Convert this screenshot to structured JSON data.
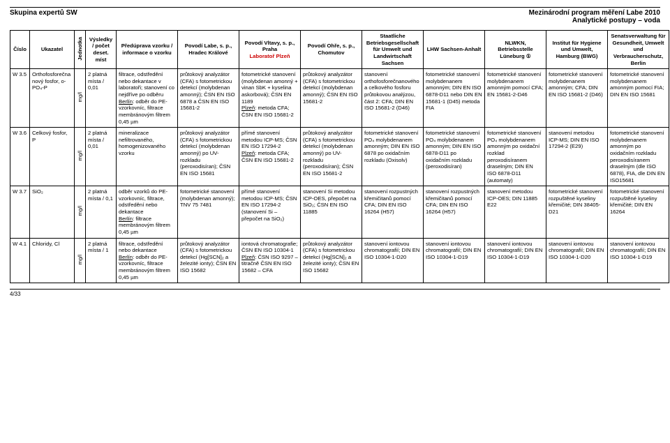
{
  "header": {
    "left": "Skupina expertů SW",
    "right_line1": "Mezinárodní program měření Labe 2010",
    "right_line2": "Analytické postupy – voda"
  },
  "columns": {
    "c0": "Číslo",
    "c1": "Ukazatel",
    "c2": "Jednotka",
    "c3": "Výsledky / počet deset. míst",
    "c4": "Předúprava vzorku / informace o vzorku",
    "c5": "Povodí Labe, s. p., Hradec Králové",
    "c6a": "Povodí Vltavy, s. p., Praha",
    "c6b": "Laboratoř Plzeň",
    "c7": "Povodí Ohře, s. p., Chomutov",
    "c8": "Staatliche Betriebsgesellschaft für Umwelt und Landwirtschaft  Sachsen",
    "c9": "LHW Sachsen-Anhalt",
    "c10": "NLWKN, Betriebsstelle Lüneburg ①",
    "c11": "Institut für Hygiene und Umwelt, Hamburg (BWG)",
    "c12": "Senatsverwaltung für Gesundheit, Umwelt und Verbraucherschutz, Berlin"
  },
  "rows": [
    {
      "num": "W 3.5",
      "param": "Orthofosforečnanový fosfor, o-PO₄-P",
      "unit": "mg/l",
      "results": "2 platná místa / 0,01",
      "c4": "filtrace, odstředění nebo dekantace v laboratoři; stanovení co nejdříve po odběru",
      "c4b": "Berlín: odběr do PE-vzorkovníc, filtrace membránovým filtrem 0,45 µm",
      "c5": "průtokový analyzátor (CFA) s fotometrickou detekcí (molybdenan amonný); ČSN EN ISO 6878 a ČSN EN ISO 15681-2",
      "c6": "fotometrické stanovení (molybdenan amonný + vinan SbK + kyselina askorbová); ČSN EN 1189",
      "c6b": "Plzeň: metoda CFA; ČSN EN ISO 15681-2",
      "c7": "průtokový analyzátor (CFA) s fotometrickou detekcí (molybdenan amonný); ČSN EN ISO 15681-2",
      "c8": "stanovení orthofosforečnanového a celkového fosforu průtokovou analýzou, část 2: CFA; DIN EN ISO 15681-2 (D46)",
      "c9": "fotometrické stanovení molybdenanem amonným; DIN EN ISO 6878-D11 nebo DIN EN 15681-1 (D45) metoda FIA",
      "c10": "fotometrické stanovení molybdenanem amonným pomocí CFA; EN 15681-2-D46",
      "c11": "fotometrické stanovení molybdenanem amonným; CFA; DIN EN ISO 15681-2 (D46)",
      "c12": "fotometrické stanovení molybdenanem amonným pomocí FIA; DIN EN ISO 15681"
    },
    {
      "num": "W 3.6",
      "param": "Celkový fosfor, P",
      "unit": "mg/l",
      "results": "2 platná místa / 0,01",
      "c4": "mineralizace nefiltrovaného, homogenizovaného vzorku",
      "c5": "průtokový analyzátor (CFA) s fotometrickou detekcí (molybdenan amonný) po UV-rozkladu (peroxodisíran); ČSN EN ISO 15681",
      "c6": "přímé stanovení metodou ICP-MS; ČSN EN ISO 17294-2",
      "c6b": "Plzeň: metoda CFA; ČSN EN ISO 15681-2",
      "c7": "průtokový analyzátor (CFA) s fotometrickou detekcí (molybdenan amonný) po UV-rozkladu (peroxodisíran); ČSN EN ISO 15681-2",
      "c8": "fotometrické stanovení PO₄ molybdenanem amonným; DIN EN ISO 6878 po oxidačním rozkladu (Oxisolv)",
      "c9": "fotometrické stanovení PO₄ molybdenanem amonným; DIN EN ISO 6878-D11 po oxidačním rozkladu (peroxodisíran)",
      "c10": "fotometrické stanovení PO₄ molybdenanem amonným po oxidační rozklad peroxodisíranem draselným; DIN EN ISO 6878-D11 (automaty)",
      "c11": "stanovení metodou ICP-MS; DIN EN ISO 17294-2 (E29)",
      "c12": "fotometrické stanovení molybdenanem amonným po oxidačním rozkladu peroxodisíranem draselným (dle ISO 6878), FIA, dle DIN EN ISO15681"
    },
    {
      "num": "W 3.7",
      "param": "SiO₂",
      "unit": "mg/l",
      "results": "2 platná místa / 0,1",
      "c4": "odběr vzorků do PE-vzorkovníc, filtrace, odstředění nebo dekantace",
      "c4b": "Berlín: filtrace membránovým filtrem 0,45 µm",
      "c5": "fotometrické stanovení (molybdenan amonný); TNV 75 7481",
      "c6": "přímé stanovení metodou ICP-MS; ČSN EN ISO 17294-2 (stanovení Si – přepočet na SiO₂)",
      "c7": "stanovení Si metodou ICP-OES, přepočet na SiO₂; ČSN EN ISO 11885",
      "c8": "stanovení rozpustných křemičitanů pomocí CFA; DIN EN ISO 16264 (H57)",
      "c9": "stanovení rozpustných křemičitanů pomocí CFA; DIN EN ISO 16264 (H57)",
      "c10": "stanovení metodou ICP-OES; DIN 11885 E22",
      "c11": "fotometrické stanovení rozpuštěné kyseliny křemičité; DIN 38405-D21",
      "c12": "fotometrické stanovení rozpuštěné kyseliny křemičité; DIN EN 16264"
    },
    {
      "num": "W 4.1",
      "param": "Chloridy, Cl",
      "unit": "mg/l",
      "results": "2 platná místa / 1",
      "c4": "filtrace, odstředění nebo dekantace",
      "c4b": "Berlín: odběr do PE-vzorkovníc, filtrace membránovým filtrem 0,45 µm",
      "c5": "průtokový analyzátor (CFA) s fotometrickou detekcí (Hg[SCN]₂ a železité ionty); ČSN EN ISO 15682",
      "c6": "iontová chromatografie; ČSN EN ISO 10304-1",
      "c6b": "Plzeň: ČSN ISO 9297 – titračně ČSN EN ISO 15682 – CFA",
      "c7": "průtokový analyzátor (CFA) s fotometrickou detekcí (Hg[SCN]₂ a železité ionty); ČSN EN ISO 15682",
      "c8": "stanovení iontovou chromatografií; DIN EN ISO 10304-1-D20",
      "c9": "stanovení iontovou chromatografií; DIN EN ISO 10304-1-D19",
      "c10": "stanovení iontovou chromatografií; DIN EN ISO 10304-1-D19",
      "c11": "stanovení iontovou chromatografií; DIN EN ISO 10304-1-D20",
      "c12": "stanovení iontovou chromatografií; DIN EN ISO 10304-1-D19"
    }
  ],
  "footer": "4/33"
}
